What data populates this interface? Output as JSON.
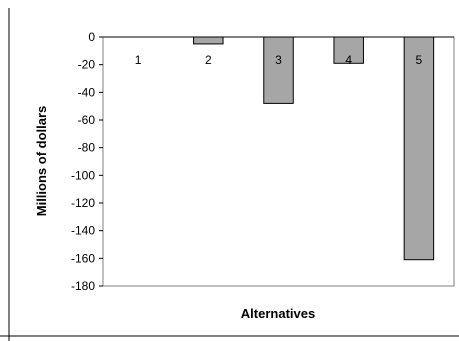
{
  "chart_data": {
    "type": "bar",
    "categories": [
      "1",
      "2",
      "3",
      "4",
      "5"
    ],
    "values": [
      0,
      -5,
      -48,
      -19,
      -161
    ],
    "xlabel": "Alternatives",
    "ylabel": "Millions of dollars",
    "ylim": [
      -180,
      0
    ],
    "yticks": [
      0,
      -20,
      -40,
      -60,
      -80,
      -100,
      -120,
      -140,
      -160,
      -180
    ],
    "grid": false,
    "bar_color": "#a6a6a6",
    "bar_edge_color": "#000000"
  }
}
